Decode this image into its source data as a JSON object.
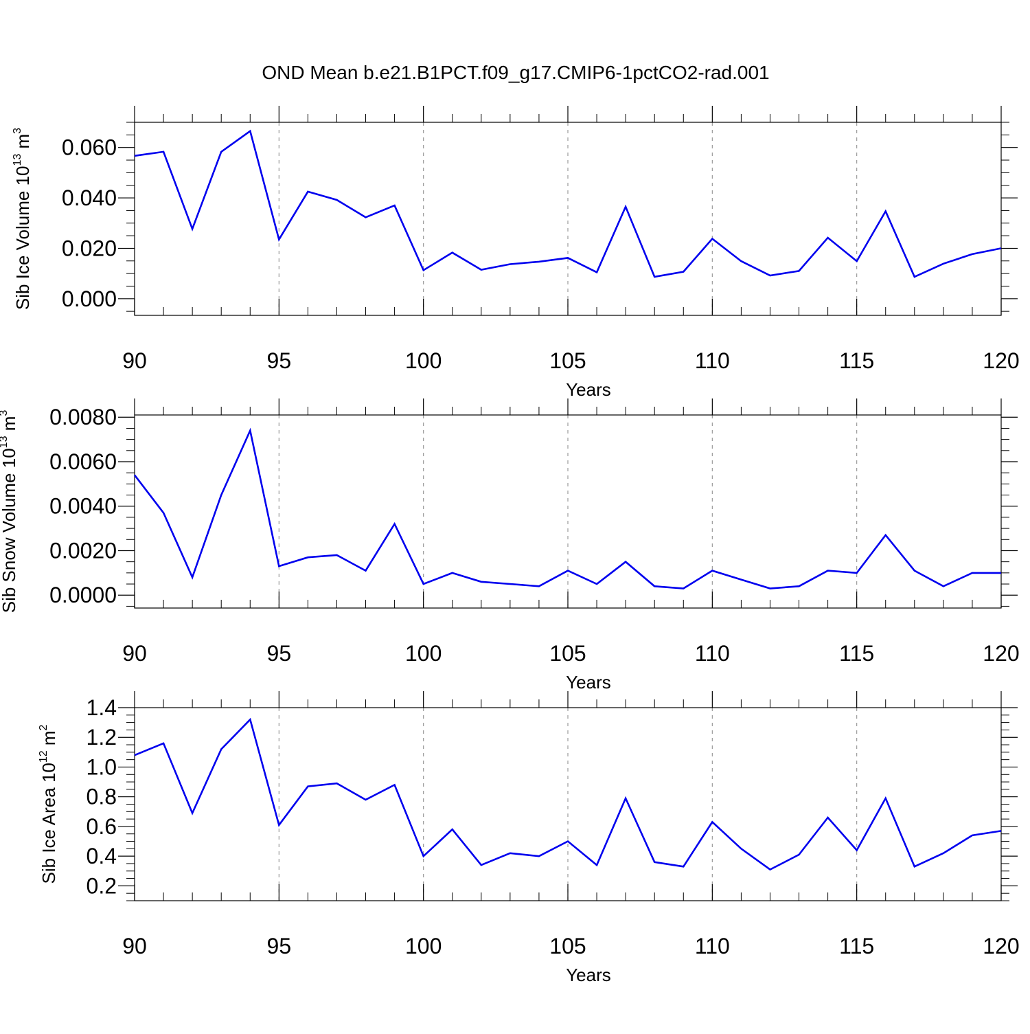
{
  "title": "OND Mean b.e21.B1PCT.f09_g17.CMIP6-1pctCO2-rad.001",
  "colors": {
    "series": "#0000ee",
    "axis": "#000000",
    "grid": "#999999"
  },
  "chart_data": [
    {
      "type": "line",
      "ylabel": {
        "main": "Sib Ice Volume 10",
        "sup": "13",
        "unit": " m",
        "unit_sup": "3"
      },
      "xlabel": "Years",
      "xlim": [
        90,
        120
      ],
      "ylim": [
        -0.0066,
        0.07
      ],
      "x_ticks": [
        90,
        95,
        100,
        105,
        110,
        115,
        120
      ],
      "x_tick_labels": [
        "90",
        "95",
        "100",
        "105",
        "110",
        "115",
        "120"
      ],
      "y_ticks": [
        0.0,
        0.02,
        0.04,
        0.06
      ],
      "y_tick_labels": [
        "0.000",
        "0.020",
        "0.040",
        "0.060"
      ],
      "y_minor_step": 0.005,
      "grid": "vertical-dashed",
      "x": [
        90,
        91,
        92,
        93,
        94,
        95,
        96,
        97,
        98,
        99,
        100,
        101,
        102,
        103,
        104,
        105,
        106,
        107,
        108,
        109,
        110,
        111,
        112,
        113,
        114,
        115,
        116,
        117,
        118,
        119,
        120
      ],
      "values": [
        0.0567,
        0.0583,
        0.0277,
        0.0583,
        0.0665,
        0.0235,
        0.0425,
        0.0392,
        0.0323,
        0.037,
        0.0113,
        0.0183,
        0.0115,
        0.0137,
        0.0147,
        0.0162,
        0.0105,
        0.0365,
        0.0087,
        0.0107,
        0.0238,
        0.0149,
        0.0092,
        0.011,
        0.0242,
        0.0149,
        0.0347,
        0.0087,
        0.0139,
        0.0177,
        0.02
      ]
    },
    {
      "type": "line",
      "ylabel": {
        "main": "Sib Snow Volume 10",
        "sup": "13",
        "unit": " m",
        "unit_sup": "3"
      },
      "xlabel": "Years",
      "xlim": [
        90,
        120
      ],
      "ylim": [
        -0.00058,
        0.0081
      ],
      "x_ticks": [
        90,
        95,
        100,
        105,
        110,
        115,
        120
      ],
      "x_tick_labels": [
        "90",
        "95",
        "100",
        "105",
        "110",
        "115",
        "120"
      ],
      "y_ticks": [
        0.0,
        0.002,
        0.004,
        0.006,
        0.008
      ],
      "y_tick_labels": [
        "0.0000",
        "0.0020",
        "0.0040",
        "0.0060",
        "0.0080"
      ],
      "y_minor_step": 0.0005,
      "grid": "vertical-dashed",
      "x": [
        90,
        91,
        92,
        93,
        94,
        95,
        96,
        97,
        98,
        99,
        100,
        101,
        102,
        103,
        104,
        105,
        106,
        107,
        108,
        109,
        110,
        111,
        112,
        113,
        114,
        115,
        116,
        117,
        118,
        119,
        120
      ],
      "values": [
        0.0054,
        0.0037,
        0.0008,
        0.0045,
        0.0074,
        0.0013,
        0.0017,
        0.0018,
        0.0011,
        0.0032,
        0.0005,
        0.001,
        0.0006,
        0.0005,
        0.0004,
        0.0011,
        0.0005,
        0.0015,
        0.0004,
        0.0003,
        0.0011,
        0.0007,
        0.0003,
        0.0004,
        0.0011,
        0.001,
        0.0027,
        0.0011,
        0.0004,
        0.001,
        0.001
      ]
    },
    {
      "type": "line",
      "ylabel": {
        "main": "Sib Ice Area 10",
        "sup": "12",
        "unit": " m",
        "unit_sup": "2"
      },
      "xlabel": "Years",
      "xlim": [
        90,
        120
      ],
      "ylim": [
        0.1,
        1.4
      ],
      "x_ticks": [
        90,
        95,
        100,
        105,
        110,
        115,
        120
      ],
      "x_tick_labels": [
        "90",
        "95",
        "100",
        "105",
        "110",
        "115",
        "120"
      ],
      "y_ticks": [
        0.2,
        0.4,
        0.6,
        0.8,
        1.0,
        1.2,
        1.4
      ],
      "y_tick_labels": [
        "0.2",
        "0.4",
        "0.6",
        "0.8",
        "1.0",
        "1.2",
        "1.4"
      ],
      "y_minor_step": 0.05,
      "grid": "vertical-dashed",
      "x": [
        90,
        91,
        92,
        93,
        94,
        95,
        96,
        97,
        98,
        99,
        100,
        101,
        102,
        103,
        104,
        105,
        106,
        107,
        108,
        109,
        110,
        111,
        112,
        113,
        114,
        115,
        116,
        117,
        118,
        119,
        120
      ],
      "values": [
        1.08,
        1.16,
        0.69,
        1.12,
        1.32,
        0.61,
        0.87,
        0.89,
        0.78,
        0.88,
        0.4,
        0.58,
        0.34,
        0.42,
        0.4,
        0.5,
        0.34,
        0.79,
        0.36,
        0.33,
        0.63,
        0.45,
        0.31,
        0.41,
        0.66,
        0.44,
        0.79,
        0.33,
        0.42,
        0.54,
        0.57
      ]
    }
  ]
}
